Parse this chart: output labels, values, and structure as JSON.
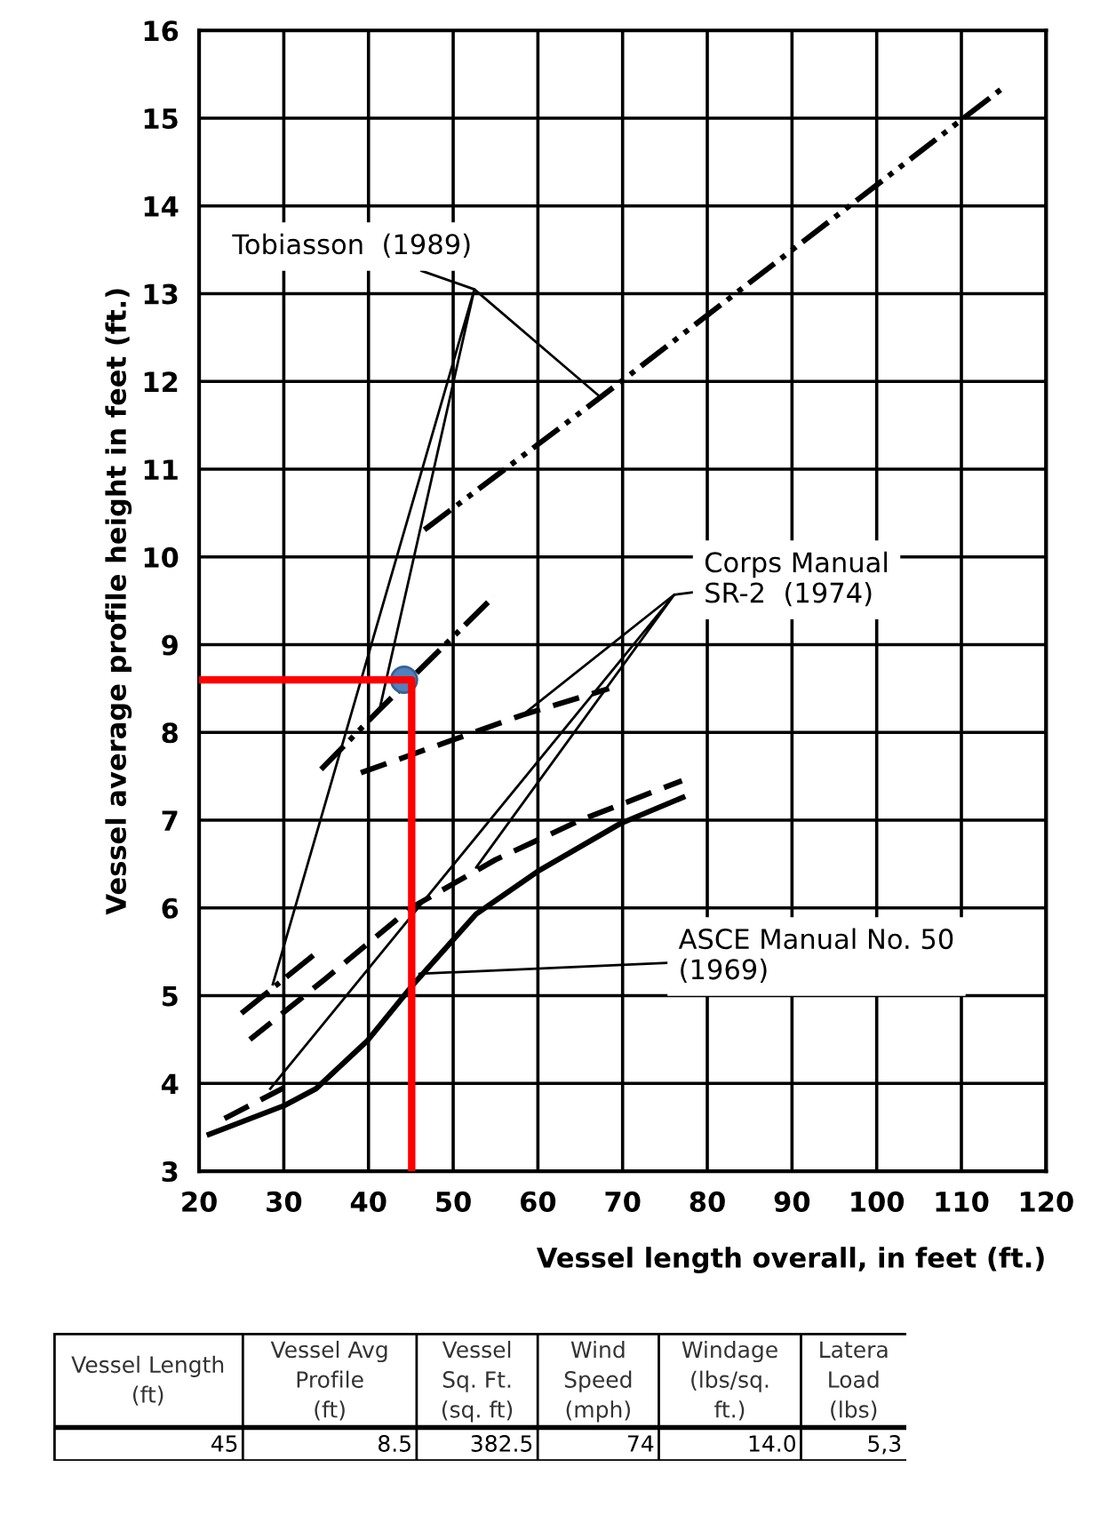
{
  "chart_data": {
    "type": "line",
    "xlabel": "Vessel length overall, in feet (ft.)",
    "ylabel": "Vessel average profile height in feet (ft.)",
    "xlim": [
      20,
      120
    ],
    "ylim": [
      3,
      16
    ],
    "xticks": [
      20,
      30,
      40,
      50,
      60,
      70,
      80,
      90,
      100,
      110,
      120
    ],
    "yticks": [
      3,
      4,
      5,
      6,
      7,
      8,
      9,
      10,
      11,
      12,
      13,
      14,
      15,
      16
    ],
    "grid": true,
    "legend": false,
    "series": [
      {
        "color": "#000000",
        "line_style": "solid",
        "x": [
          21.2,
          30.1,
          33.8,
          39.9,
          45.3,
          52.7,
          60.2,
          69.7,
          77.1
        ],
        "values": [
          3.42,
          3.75,
          3.94,
          4.49,
          5.13,
          5.93,
          6.43,
          6.96,
          7.26
        ]
      },
      {
        "color": "#000000",
        "line_style": "dashed",
        "x": [
          26,
          35,
          45,
          55,
          65,
          77
        ],
        "values": [
          4.5,
          5.2,
          6.0,
          6.55,
          7.0,
          7.45
        ]
      },
      {
        "color": "#000000",
        "line_style": "dashed",
        "x": [
          23,
          30
        ],
        "values": [
          3.6,
          3.95
        ]
      },
      {
        "color": "#000000",
        "line_style": "dashdot",
        "x": [
          25,
          34
        ],
        "values": [
          4.8,
          5.5
        ]
      },
      {
        "color": "#000000",
        "line_style": "dashed",
        "x": [
          39.1,
          58.2,
          68.4
        ],
        "values": [
          7.54,
          8.2,
          8.5
        ]
      },
      {
        "color": "#000000",
        "line_style": "dashdotdot",
        "x": [
          34.4,
          41.3,
          54.8
        ],
        "values": [
          7.58,
          8.26,
          9.55
        ]
      },
      {
        "color": "#000000",
        "line_style": "dashdotdot",
        "x": [
          46.6,
          67.4,
          115.1
        ],
        "values": [
          10.31,
          11.82,
          15.36
        ]
      },
      {
        "color": "#000000",
        "line_style": "solid",
        "x": [
          67.4,
          52.5,
          41.3,
          52.5,
          28.7
        ],
        "values": [
          11.82,
          13.05,
          8.26,
          13.05,
          5.13
        ]
      },
      {
        "color": "#000000",
        "line_style": "solid",
        "x": [
          58.2,
          76.1,
          52.7,
          76.1,
          28.4
        ],
        "values": [
          8.2,
          9.57,
          6.46,
          9.57,
          3.94
        ]
      },
      {
        "color": "#ff0000",
        "line_style": "solid",
        "x": [
          20,
          45.1,
          45.1
        ],
        "values": [
          8.6,
          8.6,
          3
        ]
      },
      {
        "type": "scatter",
        "color": "#4f81bd",
        "marker": "circle",
        "x": [
          44.2
        ],
        "values": [
          8.6
        ]
      }
    ],
    "annotations": [
      {
        "text": "Tobiasson  (1989)",
        "x": 52.5,
        "y": 13.05
      },
      {
        "text": "Corps Manual\nSR-2  (1974)",
        "x": 76.1,
        "y": 9.57
      },
      {
        "text": "ASCE Manual No. 50\n(1969)",
        "x": 46,
        "y": 5.25
      },
      "Vessel Length\n(ft)",
      "Vessel Avg\nProfile\n(ft)",
      "Vessel\nSq. Ft.\n(sq. ft)",
      "Wind\nSpeed\n(mph)",
      "Windage\n(lbs/sq.\nft.)",
      "Latera\nLoad\n(lbs)",
      "45",
      "8.5",
      "382.5",
      "74",
      "14.0",
      "5,3"
    ]
  }
}
